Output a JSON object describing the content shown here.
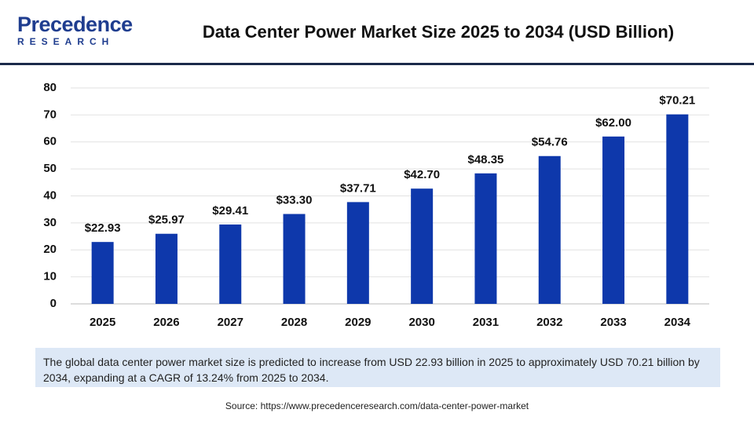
{
  "logo": {
    "name": "Precedence",
    "sub": "RESEARCH"
  },
  "chart_data": {
    "type": "bar",
    "title": "Data Center Power Market Size 2025 to 2034 (USD Billion)",
    "categories": [
      "2025",
      "2026",
      "2027",
      "2028",
      "2029",
      "2030",
      "2031",
      "2032",
      "2033",
      "2034"
    ],
    "values": [
      22.93,
      25.97,
      29.41,
      33.3,
      37.71,
      42.7,
      48.35,
      54.76,
      62.0,
      70.21
    ],
    "value_labels": [
      "$22.93",
      "$25.97",
      "$29.41",
      "$33.30",
      "$37.71",
      "$42.70",
      "$48.35",
      "$54.76",
      "$62.00",
      "$70.21"
    ],
    "color": "#0e38ab",
    "ylim": [
      0,
      80
    ],
    "yticks": [
      0,
      10,
      20,
      30,
      40,
      50,
      60,
      70,
      80
    ],
    "grid": true
  },
  "caption": "The global data center power market size is predicted to increase from USD 22.93 billion in 2025 to approximately USD 70.21 billion by 2034, expanding at a CAGR of 13.24% from 2025 to 2034.",
  "source": "Source: https://www.precedenceresearch.com/data-center-power-market"
}
